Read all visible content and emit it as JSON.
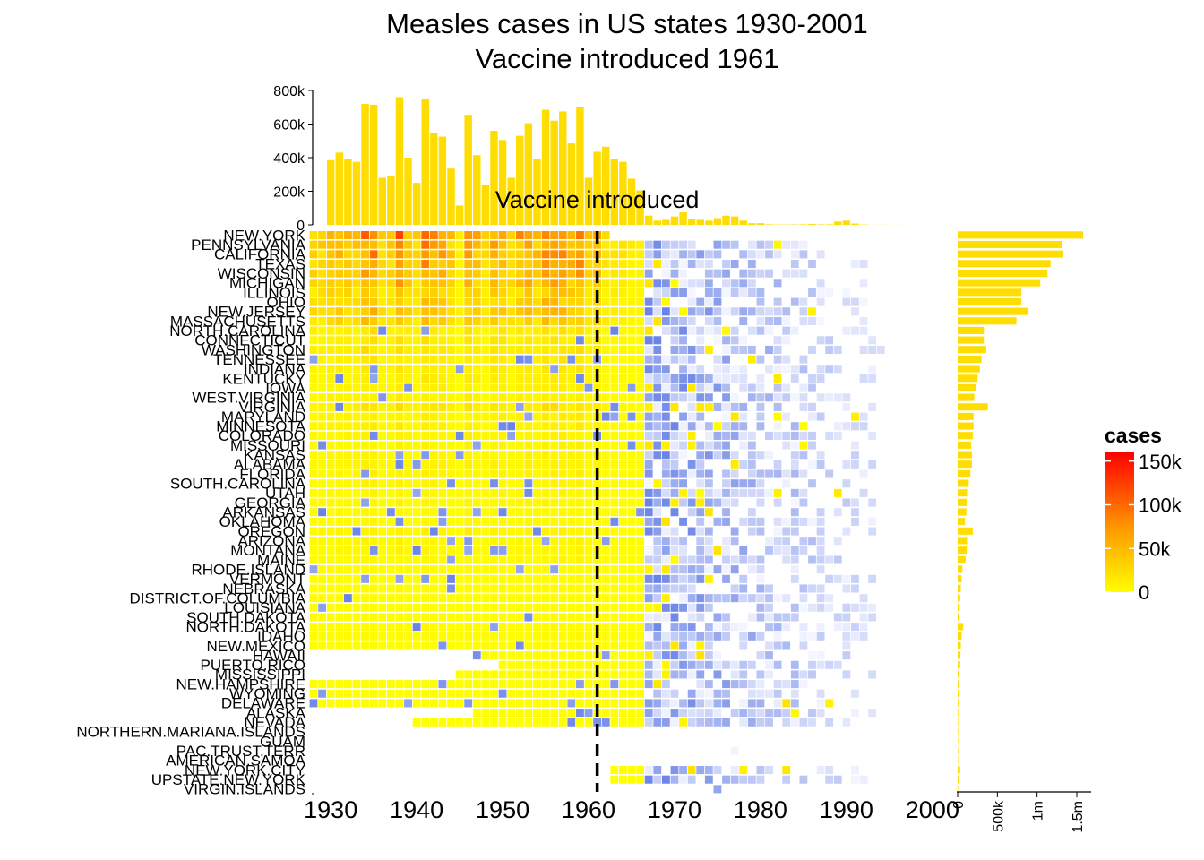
{
  "chart_data": {
    "type": "heatmap",
    "title": "Measles cases in US states 1930-2001",
    "subtitle": "Vaccine introduced 1961",
    "x_range": [
      1928,
      2002
    ],
    "x_ticks": [
      1930,
      1940,
      1950,
      1960,
      1970,
      1980,
      1990,
      2000
    ],
    "annotation": {
      "text": "Vaccine introduced",
      "x": 1961
    },
    "legend": {
      "title": "cases",
      "position": "right",
      "ticks": [
        0,
        50000,
        100000,
        150000
      ],
      "tick_labels": [
        "0",
        "50k",
        "100k",
        "150k"
      ],
      "max": 160000,
      "colors": {
        "low": "#ffff00",
        "mid": "#ff9a00",
        "high": "#ff0000"
      },
      "post_vaccine_colors": {
        "low": "#f5f6ff",
        "high": "#6a83e6"
      }
    },
    "yearly_totals": {
      "ylim": [
        0,
        800000
      ],
      "ticks": [
        0,
        200000,
        400000,
        600000,
        800000
      ],
      "tick_labels": [
        "0",
        "200k",
        "400k",
        "600k",
        "800k"
      ],
      "color": "#ffdd00",
      "years": [
        1930,
        1931,
        1932,
        1933,
        1934,
        1935,
        1936,
        1937,
        1938,
        1939,
        1940,
        1941,
        1942,
        1943,
        1944,
        1945,
        1946,
        1947,
        1948,
        1949,
        1950,
        1951,
        1952,
        1953,
        1954,
        1955,
        1956,
        1957,
        1958,
        1959,
        1960,
        1961,
        1962,
        1963,
        1964,
        1965,
        1966,
        1967,
        1968,
        1969,
        1970,
        1971,
        1972,
        1973,
        1974,
        1975,
        1976,
        1977,
        1978,
        1979,
        1980,
        1981,
        1982,
        1983,
        1984,
        1985,
        1986,
        1987,
        1988,
        1989,
        1990,
        1991,
        1992,
        1993,
        1994,
        1995,
        1996,
        1997,
        1998,
        1999,
        2000,
        2001
      ],
      "values": [
        385000,
        430000,
        390000,
        375000,
        720000,
        715000,
        280000,
        290000,
        760000,
        400000,
        250000,
        750000,
        545000,
        525000,
        335000,
        115000,
        655000,
        415000,
        235000,
        560000,
        505000,
        280000,
        530000,
        605000,
        395000,
        685000,
        620000,
        675000,
        485000,
        700000,
        280000,
        435000,
        465000,
        390000,
        375000,
        275000,
        205000,
        55000,
        25000,
        30000,
        50000,
        75000,
        35000,
        30000,
        25000,
        40000,
        55000,
        50000,
        25000,
        10000,
        10000,
        3000,
        2000,
        2000,
        2500,
        3000,
        5000,
        3000,
        3000,
        20000,
        25000,
        8000,
        2000,
        300,
        800,
        400,
        500,
        100,
        100,
        100,
        80,
        100
      ]
    },
    "state_totals": {
      "ticks": [
        0,
        500000,
        1000000,
        1500000
      ],
      "tick_labels": [
        "0",
        "500k",
        "1m",
        "1.5m"
      ],
      "color": "#ffdd00"
    },
    "states": [
      {
        "name": "NEW.YORK",
        "total": 1580000,
        "first": 1928,
        "last": 1962
      },
      {
        "name": "PENNSYLVANIA",
        "total": 1310000,
        "first": 1928,
        "last": 1988
      },
      {
        "name": "CALIFORNIA",
        "total": 1330000,
        "first": 1928,
        "last": 1994
      },
      {
        "name": "TEXAS",
        "total": 1170000,
        "first": 1928,
        "last": 1994
      },
      {
        "name": "WISCONSIN",
        "total": 1130000,
        "first": 1928,
        "last": 1993
      },
      {
        "name": "MICHIGAN",
        "total": 1040000,
        "first": 1928,
        "last": 1993
      },
      {
        "name": "ILLINOIS",
        "total": 800000,
        "first": 1928,
        "last": 1993
      },
      {
        "name": "OHIO",
        "total": 800000,
        "first": 1928,
        "last": 1993
      },
      {
        "name": "NEW.JERSEY",
        "total": 880000,
        "first": 1928,
        "last": 1993
      },
      {
        "name": "MASSACHUSETTS",
        "total": 740000,
        "first": 1928,
        "last": 1993
      },
      {
        "name": "NORTH.CAROLINA",
        "total": 330000,
        "first": 1928,
        "last": 1993
      },
      {
        "name": "CONNECTICUT",
        "total": 330000,
        "first": 1928,
        "last": 1993
      },
      {
        "name": "WASHINGTON",
        "total": 360000,
        "first": 1928,
        "last": 1996
      },
      {
        "name": "TENNESSEE",
        "total": 300000,
        "first": 1928,
        "last": 1993
      },
      {
        "name": "INDIANA",
        "total": 280000,
        "first": 1928,
        "last": 1993
      },
      {
        "name": "KENTUCKY",
        "total": 250000,
        "first": 1928,
        "last": 1993
      },
      {
        "name": "IOWA",
        "total": 230000,
        "first": 1928,
        "last": 1993
      },
      {
        "name": "WEST.VIRGINIA",
        "total": 210000,
        "first": 1928,
        "last": 1993
      },
      {
        "name": "VIRGINIA",
        "total": 380000,
        "first": 1928,
        "last": 1993
      },
      {
        "name": "MARYLAND",
        "total": 200000,
        "first": 1928,
        "last": 1993
      },
      {
        "name": "MINNESOTA",
        "total": 200000,
        "first": 1928,
        "last": 1993
      },
      {
        "name": "COLORADO",
        "total": 190000,
        "first": 1928,
        "last": 1993
      },
      {
        "name": "MISSOURI",
        "total": 170000,
        "first": 1928,
        "last": 1993
      },
      {
        "name": "KANSAS",
        "total": 180000,
        "first": 1928,
        "last": 1993
      },
      {
        "name": "ALABAMA",
        "total": 180000,
        "first": 1928,
        "last": 1993
      },
      {
        "name": "FLORIDA",
        "total": 160000,
        "first": 1928,
        "last": 1993
      },
      {
        "name": "SOUTH.CAROLINA",
        "total": 140000,
        "first": 1928,
        "last": 1993
      },
      {
        "name": "UTAH",
        "total": 130000,
        "first": 1928,
        "last": 1996
      },
      {
        "name": "GEORGIA",
        "total": 120000,
        "first": 1928,
        "last": 1993
      },
      {
        "name": "ARKANSAS",
        "total": 110000,
        "first": 1928,
        "last": 1993
      },
      {
        "name": "OKLAHOMA",
        "total": 90000,
        "first": 1928,
        "last": 1993
      },
      {
        "name": "OREGON",
        "total": 190000,
        "first": 1928,
        "last": 1993
      },
      {
        "name": "ARIZONA",
        "total": 130000,
        "first": 1928,
        "last": 1993
      },
      {
        "name": "MONTANA",
        "total": 120000,
        "first": 1928,
        "last": 1993
      },
      {
        "name": "MAINE",
        "total": 100000,
        "first": 1928,
        "last": 1993
      },
      {
        "name": "RHODE.ISLAND",
        "total": 60000,
        "first": 1928,
        "last": 1993
      },
      {
        "name": "VERMONT",
        "total": 50000,
        "first": 1928,
        "last": 1993
      },
      {
        "name": "NEBRASKA",
        "total": 40000,
        "first": 1928,
        "last": 1993
      },
      {
        "name": "DISTRICT.OF.COLUMBIA",
        "total": 30000,
        "first": 1928,
        "last": 1993
      },
      {
        "name": "LOUISIANA",
        "total": 25000,
        "first": 1928,
        "last": 1993
      },
      {
        "name": "SOUTH.DAKOTA",
        "total": 20000,
        "first": 1928,
        "last": 1993
      },
      {
        "name": "NORTH.DAKOTA",
        "total": 70000,
        "first": 1928,
        "last": 1993
      },
      {
        "name": "IDAHO",
        "total": 50000,
        "first": 1928,
        "last": 1993
      },
      {
        "name": "NEW.MEXICO",
        "total": 40000,
        "first": 1928,
        "last": 1993
      },
      {
        "name": "HAWAII",
        "total": 35000,
        "first": 1947,
        "last": 1993
      },
      {
        "name": "PUERTO.RICO",
        "total": 30000,
        "first": 1950,
        "last": 1993
      },
      {
        "name": "MISSISSIPPI",
        "total": 22000,
        "first": 1945,
        "last": 1993
      },
      {
        "name": "NEW.HAMPSHIRE",
        "total": 15000,
        "first": 1928,
        "last": 1993
      },
      {
        "name": "WYOMING",
        "total": 12000,
        "first": 1928,
        "last": 1993
      },
      {
        "name": "DELAWARE",
        "total": 10000,
        "first": 1928,
        "last": 1993
      },
      {
        "name": "ALASKA",
        "total": 8000,
        "first": 1947,
        "last": 1993
      },
      {
        "name": "NEVADA",
        "total": 6000,
        "first": 1940,
        "last": 1993
      },
      {
        "name": "NORTHERN.MARIANA.ISLANDS",
        "total": 1000,
        "first": 1993,
        "last": 1993
      },
      {
        "name": "GUAM",
        "total": 1000,
        "first": 1977,
        "last": 1977
      },
      {
        "name": "PAC.TRUST.TERR",
        "total": 1000,
        "first": 1977,
        "last": 1977
      },
      {
        "name": "AMERICAN.SAMOA",
        "total": 500,
        "first": 0,
        "last": 0
      },
      {
        "name": "NEW.YORK.CITY",
        "total": 30000,
        "first": 1963,
        "last": 1993
      },
      {
        "name": "UPSTATE.NEW.YORK",
        "total": 20000,
        "first": 1963,
        "last": 1993
      },
      {
        "name": "VIRGIN.ISLANDS",
        "total": 3000,
        "first": 1975,
        "last": 1975
      }
    ]
  }
}
